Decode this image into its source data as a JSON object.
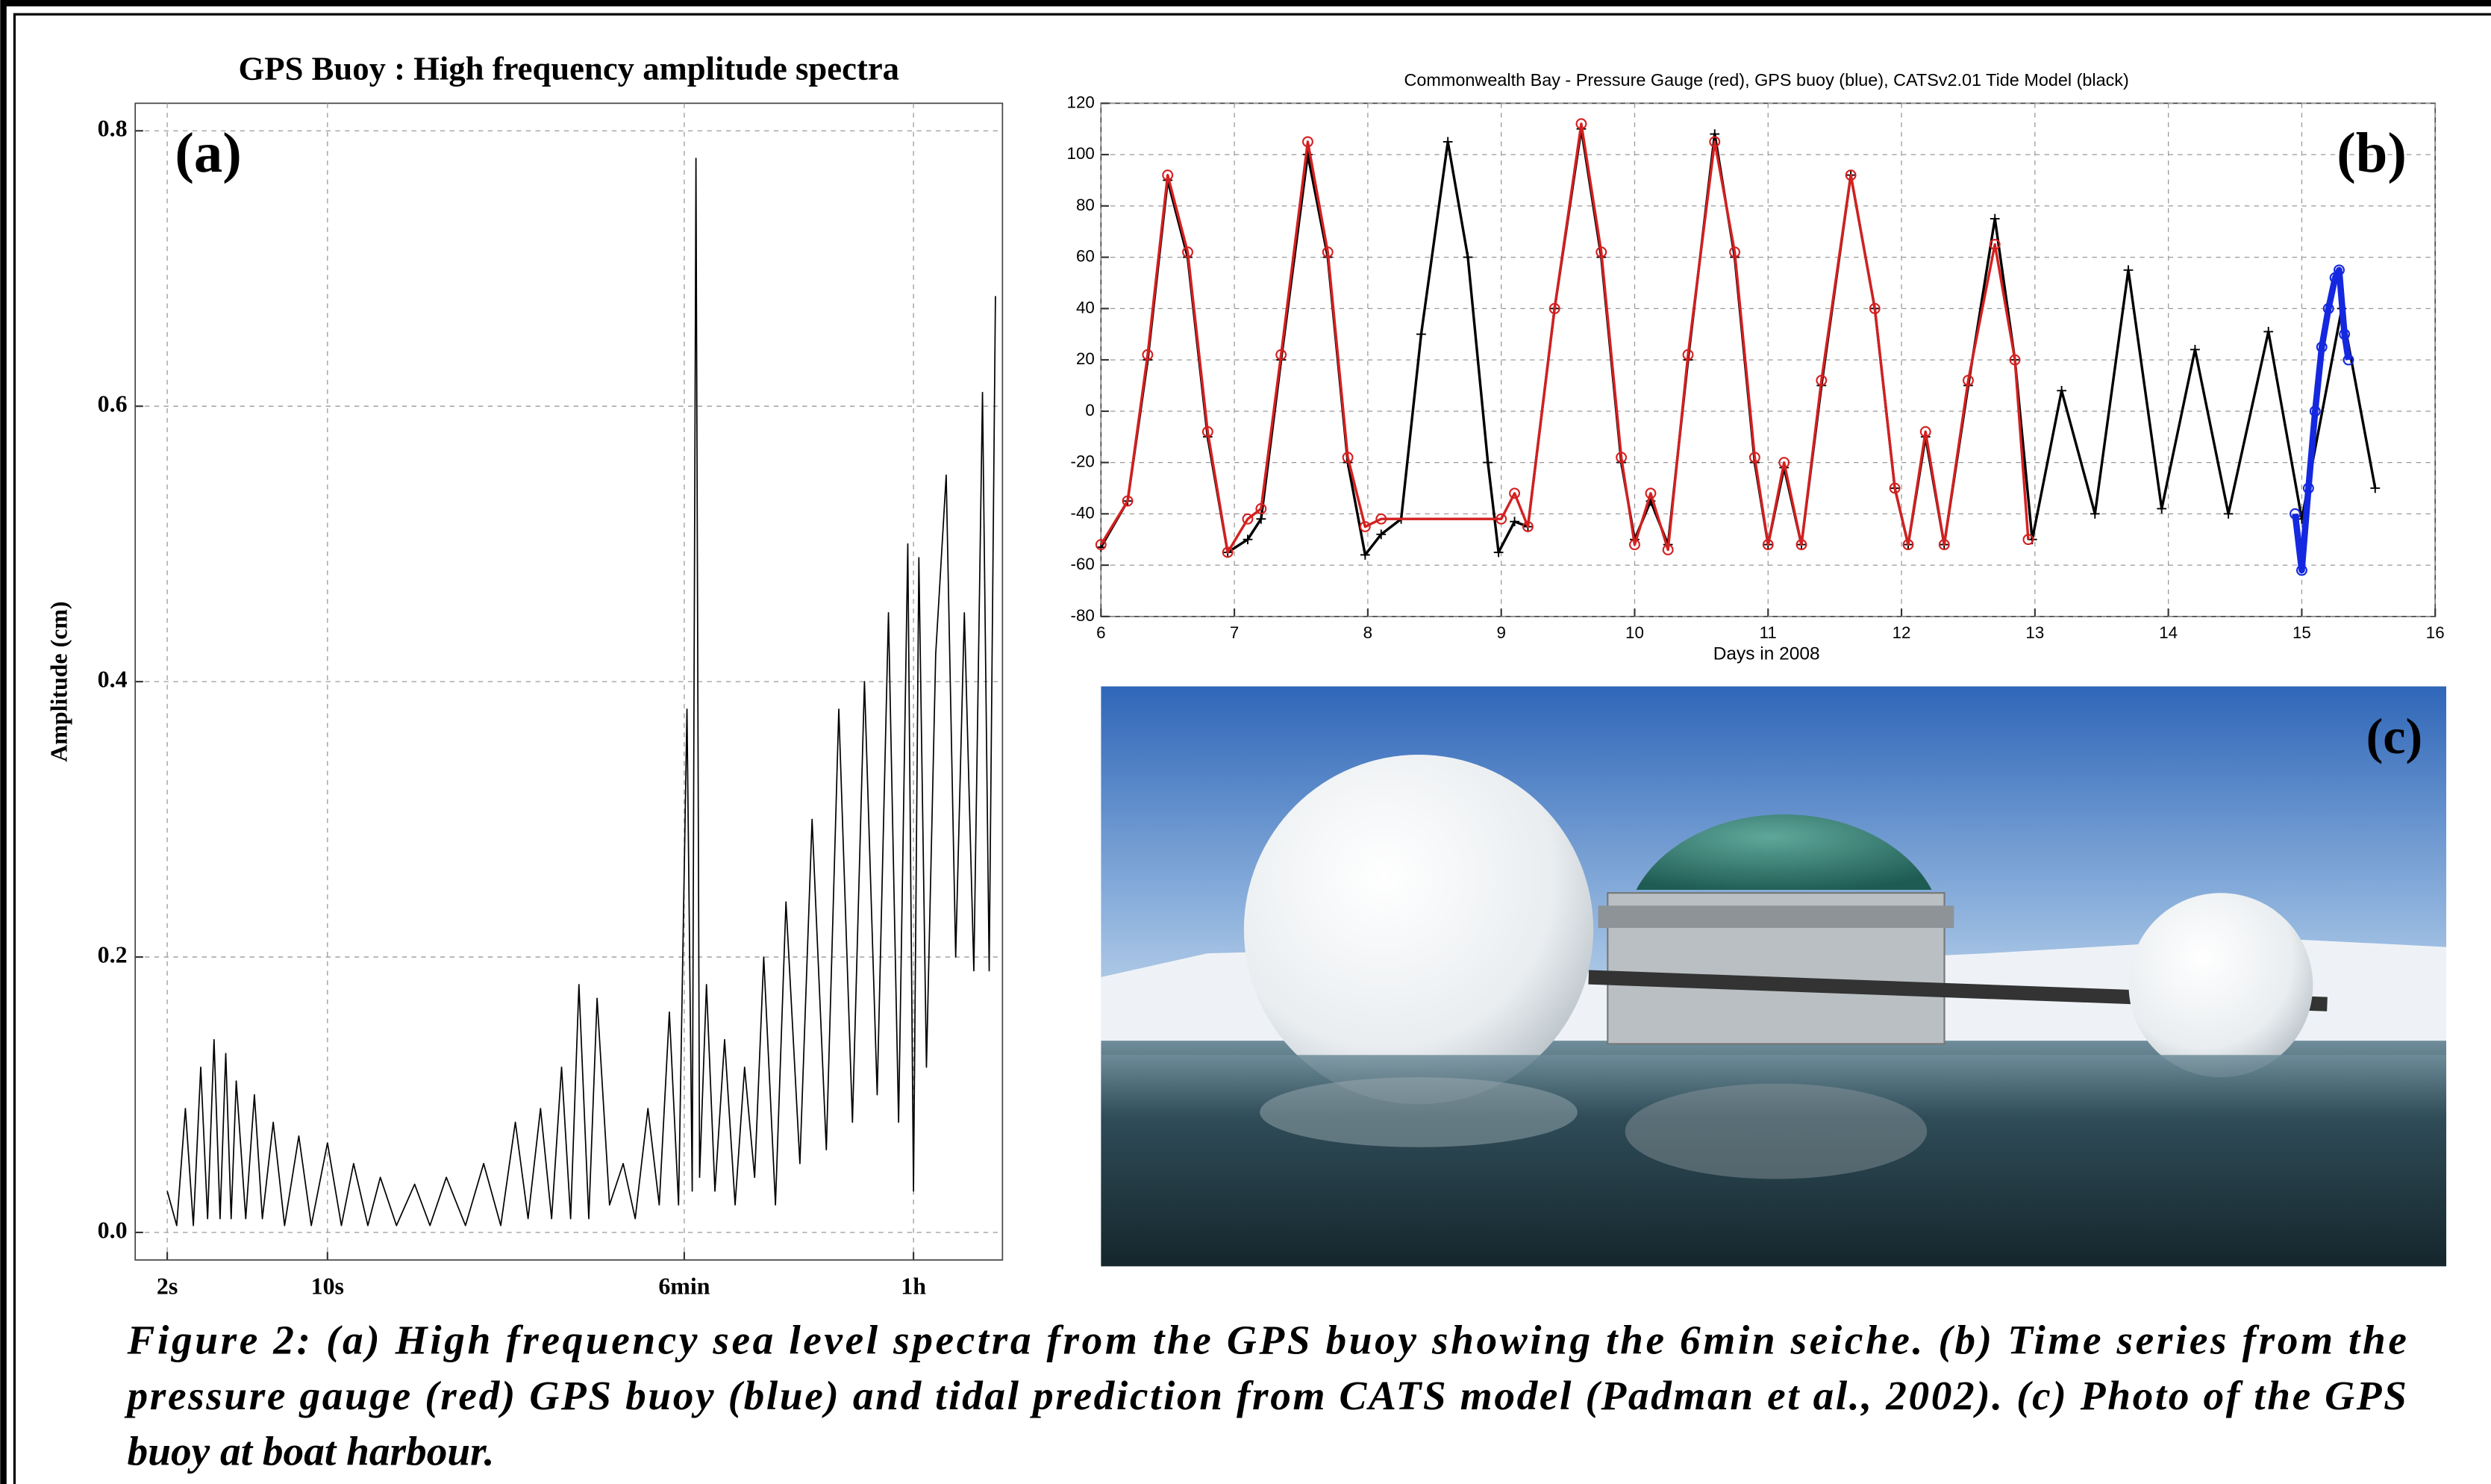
{
  "chart_data": [
    {
      "type": "line",
      "title": "GPS Buoy : High frequency amplitude spectra",
      "label": "(a)",
      "ylabel": "Amplitude (cm)",
      "log_x": true,
      "grid": true,
      "color": "#000000",
      "xlim": [
        1.45,
        8800
      ],
      "ylim": [
        -0.02,
        0.82
      ],
      "xticks": [
        {
          "value": 2,
          "label": "2s"
        },
        {
          "value": 10,
          "label": "10s"
        },
        {
          "value": 360,
          "label": "6min"
        },
        {
          "value": 3600,
          "label": "1h"
        }
      ],
      "yticks": [
        {
          "value": 0,
          "label": "0.0"
        },
        0.2,
        0.4,
        0.6,
        0.8
      ],
      "x": [
        2,
        2.2,
        2.4,
        2.6,
        2.8,
        3.0,
        3.2,
        3.4,
        3.6,
        3.8,
        4.0,
        4.4,
        4.8,
        5.2,
        5.8,
        6.5,
        7.5,
        8.5,
        10,
        11.5,
        13,
        15,
        17,
        20,
        24,
        28,
        33,
        40,
        48,
        57,
        66,
        75,
        85,
        95,
        105,
        115,
        125,
        138,
        150,
        170,
        195,
        220,
        250,
        280,
        310,
        340,
        370,
        390,
        405,
        420,
        450,
        490,
        540,
        600,
        660,
        730,
        800,
        900,
        1000,
        1150,
        1300,
        1500,
        1700,
        1950,
        2200,
        2500,
        2800,
        3100,
        3400,
        3600,
        3800,
        4100,
        4500,
        5000,
        5500,
        6000,
        6600,
        7200,
        7700,
        8200
      ],
      "values": [
        0.03,
        0.005,
        0.09,
        0.005,
        0.12,
        0.01,
        0.14,
        0.01,
        0.13,
        0.01,
        0.11,
        0.01,
        0.1,
        0.01,
        0.08,
        0.005,
        0.07,
        0.005,
        0.065,
        0.005,
        0.05,
        0.005,
        0.04,
        0.005,
        0.035,
        0.005,
        0.04,
        0.005,
        0.05,
        0.005,
        0.08,
        0.01,
        0.09,
        0.01,
        0.12,
        0.01,
        0.18,
        0.01,
        0.17,
        0.02,
        0.05,
        0.01,
        0.09,
        0.02,
        0.16,
        0.02,
        0.38,
        0.03,
        0.78,
        0.04,
        0.18,
        0.03,
        0.14,
        0.02,
        0.12,
        0.04,
        0.2,
        0.02,
        0.24,
        0.05,
        0.3,
        0.06,
        0.38,
        0.08,
        0.4,
        0.1,
        0.45,
        0.08,
        0.5,
        0.03,
        0.49,
        0.12,
        0.42,
        0.55,
        0.2,
        0.45,
        0.19,
        0.61,
        0.19,
        0.68
      ]
    },
    {
      "type": "line",
      "title": "Commonwealth Bay - Pressure Gauge (red), GPS buoy (blue), CATSv2.01 Tide Model (black)",
      "label": "(b)",
      "xlabel": "Days in 2008",
      "grid": true,
      "xlim": [
        6,
        16
      ],
      "ylim": [
        -80,
        120
      ],
      "xticks": [
        6,
        7,
        8,
        9,
        10,
        11,
        12,
        13,
        14,
        15,
        16
      ],
      "yticks": [
        -80,
        -60,
        -40,
        -20,
        0,
        20,
        40,
        60,
        80,
        100,
        120
      ],
      "series": [
        {
          "color": "#000000",
          "marker": "+",
          "x": [
            6.0,
            6.2,
            6.35,
            6.5,
            6.65,
            6.8,
            6.95,
            7.1,
            7.2,
            7.35,
            7.55,
            7.7,
            7.85,
            7.98,
            8.1,
            8.25,
            8.4,
            8.6,
            8.75,
            8.9,
            8.98,
            9.1,
            9.2,
            9.4,
            9.6,
            9.75,
            9.9,
            10.0,
            10.12,
            10.25,
            10.4,
            10.6,
            10.75,
            10.9,
            11.0,
            11.12,
            11.25,
            11.4,
            11.62,
            11.8,
            11.95,
            12.05,
            12.18,
            12.32,
            12.5,
            12.7,
            12.85,
            12.98,
            13.2,
            13.45,
            13.7,
            13.95,
            14.2,
            14.45,
            14.75,
            15.0,
            15.3,
            15.55
          ],
          "values": [
            -53,
            -35,
            20,
            90,
            60,
            -10,
            -55,
            -50,
            -42,
            20,
            100,
            60,
            -20,
            -56,
            -48,
            -42,
            30,
            105,
            60,
            -20,
            -55,
            -43,
            -45,
            40,
            110,
            60,
            -20,
            -50,
            -35,
            -52,
            20,
            108,
            60,
            -20,
            -52,
            -22,
            -52,
            10,
            92,
            40,
            -30,
            -52,
            -10,
            -52,
            10,
            75,
            20,
            -50,
            8,
            -40,
            55,
            -38,
            24,
            -40,
            31,
            -42,
            40,
            -30
          ]
        },
        {
          "color": "#d42020",
          "marker": "o",
          "x": [
            6.0,
            6.2,
            6.35,
            6.5,
            6.65,
            6.8,
            6.95,
            7.1,
            7.2,
            7.35,
            7.55,
            7.7,
            7.85,
            7.98,
            8.1,
            9.0,
            9.1,
            9.2,
            9.4,
            9.6,
            9.75,
            9.9,
            10.0,
            10.12,
            10.25,
            10.4,
            10.6,
            10.75,
            10.9,
            11.0,
            11.12,
            11.25,
            11.4,
            11.62,
            11.8,
            11.95,
            12.05,
            12.18,
            12.32,
            12.5,
            12.7,
            12.85,
            12.95
          ],
          "values": [
            -52,
            -35,
            22,
            92,
            62,
            -8,
            -55,
            -42,
            -38,
            22,
            105,
            62,
            -18,
            -45,
            -42,
            -42,
            -32,
            -45,
            40,
            112,
            62,
            -18,
            -52,
            -32,
            -54,
            22,
            105,
            62,
            -18,
            -52,
            -20,
            -52,
            12,
            92,
            40,
            -30,
            -52,
            -8,
            -52,
            12,
            65,
            20,
            -50
          ]
        },
        {
          "color": "#1428e0",
          "marker": "o",
          "x": [
            14.95,
            15.0,
            15.05,
            15.1,
            15.15,
            15.2,
            15.25,
            15.28,
            15.32,
            15.35
          ],
          "values": [
            -40,
            -62,
            -30,
            0,
            25,
            40,
            52,
            55,
            30,
            20
          ]
        }
      ]
    }
  ],
  "photo": {
    "label": "(c)"
  },
  "caption": [
    "Figure 2: (a) High frequency sea level spectra from the GPS  buoy showing the 6min seiche. (b) Time series from the",
    "pressure gauge (red) GPS buoy (blue) and tidal prediction from CATS model (Padman et al., 2002). (c) Photo of the GPS",
    "buoy at boat harbour."
  ]
}
